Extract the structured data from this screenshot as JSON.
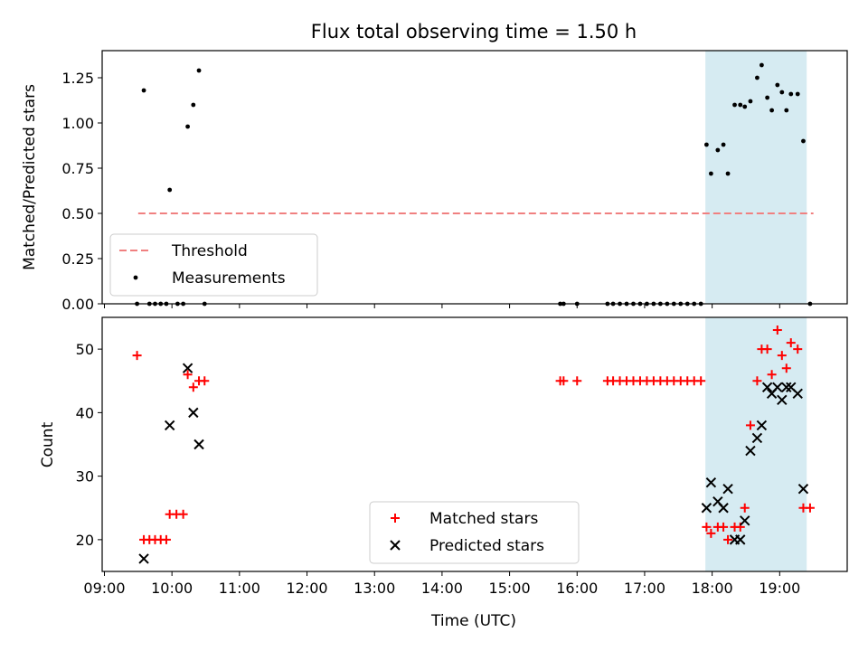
{
  "chart_data": [
    {
      "type": "scatter",
      "title": "Flux total observing time = 1.50 h",
      "ylabel": "Matched/Predicted stars",
      "xlabel": "",
      "xlim": [
        "08:58",
        "20:00"
      ],
      "ylim": [
        0,
        1.4
      ],
      "y_ticks": [
        "0.00",
        "0.25",
        "0.50",
        "0.75",
        "1.00",
        "1.25"
      ],
      "shaded_span": [
        "17:54",
        "19:24"
      ],
      "shaded_color": "#add8e6",
      "legend_position": "lower-left",
      "threshold": {
        "name": "Threshold",
        "value": 0.5,
        "x_range": [
          "09:30",
          "19:30"
        ],
        "color": "#f08080"
      },
      "series": [
        {
          "name": "Measurements",
          "color": "#000000",
          "points": [
            [
              "09:29",
              0
            ],
            [
              "09:35",
              1.18
            ],
            [
              "09:40",
              0
            ],
            [
              "09:45",
              0
            ],
            [
              "09:50",
              0
            ],
            [
              "09:55",
              0
            ],
            [
              "09:58",
              0.63
            ],
            [
              "10:05",
              0
            ],
            [
              "10:10",
              0
            ],
            [
              "10:14",
              0.98
            ],
            [
              "10:19",
              1.1
            ],
            [
              "10:24",
              1.29
            ],
            [
              "10:29",
              0
            ],
            [
              "15:45",
              0
            ],
            [
              "15:48",
              0
            ],
            [
              "16:00",
              0
            ],
            [
              "16:27",
              0
            ],
            [
              "16:32",
              0
            ],
            [
              "16:38",
              0
            ],
            [
              "16:44",
              0
            ],
            [
              "16:50",
              0
            ],
            [
              "16:56",
              0
            ],
            [
              "17:02",
              0
            ],
            [
              "17:08",
              0
            ],
            [
              "17:14",
              0
            ],
            [
              "17:20",
              0
            ],
            [
              "17:26",
              0
            ],
            [
              "17:32",
              0
            ],
            [
              "17:38",
              0
            ],
            [
              "17:44",
              0
            ],
            [
              "17:50",
              0
            ],
            [
              "17:55",
              0.88
            ],
            [
              "17:59",
              0.72
            ],
            [
              "18:05",
              0.85
            ],
            [
              "18:10",
              0.88
            ],
            [
              "18:14",
              0.72
            ],
            [
              "18:20",
              1.1
            ],
            [
              "18:25",
              1.1
            ],
            [
              "18:29",
              1.09
            ],
            [
              "18:34",
              1.12
            ],
            [
              "18:40",
              1.25
            ],
            [
              "18:44",
              1.32
            ],
            [
              "18:49",
              1.14
            ],
            [
              "18:53",
              1.07
            ],
            [
              "18:58",
              1.21
            ],
            [
              "19:02",
              1.17
            ],
            [
              "19:06",
              1.07
            ],
            [
              "19:10",
              1.16
            ],
            [
              "19:16",
              1.16
            ],
            [
              "19:21",
              0.9
            ],
            [
              "19:27",
              0
            ]
          ]
        }
      ]
    },
    {
      "type": "scatter",
      "title": "",
      "ylabel": "Count",
      "xlabel": "Time (UTC)",
      "xlim": [
        "08:58",
        "20:00"
      ],
      "ylim": [
        15,
        55
      ],
      "y_ticks": [
        "20",
        "30",
        "40",
        "50"
      ],
      "x_ticks": [
        "09:00",
        "10:00",
        "11:00",
        "12:00",
        "13:00",
        "14:00",
        "15:00",
        "16:00",
        "17:00",
        "18:00",
        "19:00"
      ],
      "shaded_span": [
        "17:54",
        "19:24"
      ],
      "shaded_color": "#add8e6",
      "legend_position": "lower-center",
      "series": [
        {
          "name": "Matched stars",
          "color": "#ff0000",
          "marker": "plus",
          "points": [
            [
              "09:29",
              49
            ],
            [
              "09:35",
              20
            ],
            [
              "09:40",
              20
            ],
            [
              "09:45",
              20
            ],
            [
              "09:50",
              20
            ],
            [
              "09:55",
              20
            ],
            [
              "09:58",
              24
            ],
            [
              "10:04",
              24
            ],
            [
              "10:10",
              24
            ],
            [
              "10:14",
              46
            ],
            [
              "10:19",
              44
            ],
            [
              "10:24",
              45
            ],
            [
              "10:29",
              45
            ],
            [
              "15:45",
              45
            ],
            [
              "15:48",
              45
            ],
            [
              "16:00",
              45
            ],
            [
              "16:27",
              45
            ],
            [
              "16:32",
              45
            ],
            [
              "16:38",
              45
            ],
            [
              "16:44",
              45
            ],
            [
              "16:50",
              45
            ],
            [
              "16:56",
              45
            ],
            [
              "17:02",
              45
            ],
            [
              "17:08",
              45
            ],
            [
              "17:14",
              45
            ],
            [
              "17:20",
              45
            ],
            [
              "17:26",
              45
            ],
            [
              "17:32",
              45
            ],
            [
              "17:38",
              45
            ],
            [
              "17:44",
              45
            ],
            [
              "17:50",
              45
            ],
            [
              "17:55",
              22
            ],
            [
              "17:59",
              21
            ],
            [
              "18:05",
              22
            ],
            [
              "18:10",
              22
            ],
            [
              "18:14",
              20
            ],
            [
              "18:20",
              22
            ],
            [
              "18:25",
              22
            ],
            [
              "18:29",
              25
            ],
            [
              "18:34",
              38
            ],
            [
              "18:40",
              45
            ],
            [
              "18:44",
              50
            ],
            [
              "18:49",
              50
            ],
            [
              "18:53",
              46
            ],
            [
              "18:58",
              53
            ],
            [
              "19:02",
              49
            ],
            [
              "19:06",
              47
            ],
            [
              "19:10",
              51
            ],
            [
              "19:16",
              50
            ],
            [
              "19:21",
              25
            ],
            [
              "19:27",
              25
            ]
          ]
        },
        {
          "name": "Predicted stars",
          "color": "#000000",
          "marker": "x",
          "points": [
            [
              "09:35",
              17
            ],
            [
              "09:58",
              38
            ],
            [
              "10:14",
              47
            ],
            [
              "10:19",
              40
            ],
            [
              "10:24",
              35
            ],
            [
              "17:55",
              25
            ],
            [
              "17:59",
              29
            ],
            [
              "18:05",
              26
            ],
            [
              "18:10",
              25
            ],
            [
              "18:14",
              28
            ],
            [
              "18:20",
              20
            ],
            [
              "18:25",
              20
            ],
            [
              "18:29",
              23
            ],
            [
              "18:34",
              34
            ],
            [
              "18:40",
              36
            ],
            [
              "18:44",
              38
            ],
            [
              "18:49",
              44
            ],
            [
              "18:53",
              43
            ],
            [
              "18:58",
              44
            ],
            [
              "19:02",
              42
            ],
            [
              "19:06",
              44
            ],
            [
              "19:10",
              44
            ],
            [
              "19:16",
              43
            ],
            [
              "19:21",
              28
            ]
          ]
        }
      ]
    }
  ]
}
